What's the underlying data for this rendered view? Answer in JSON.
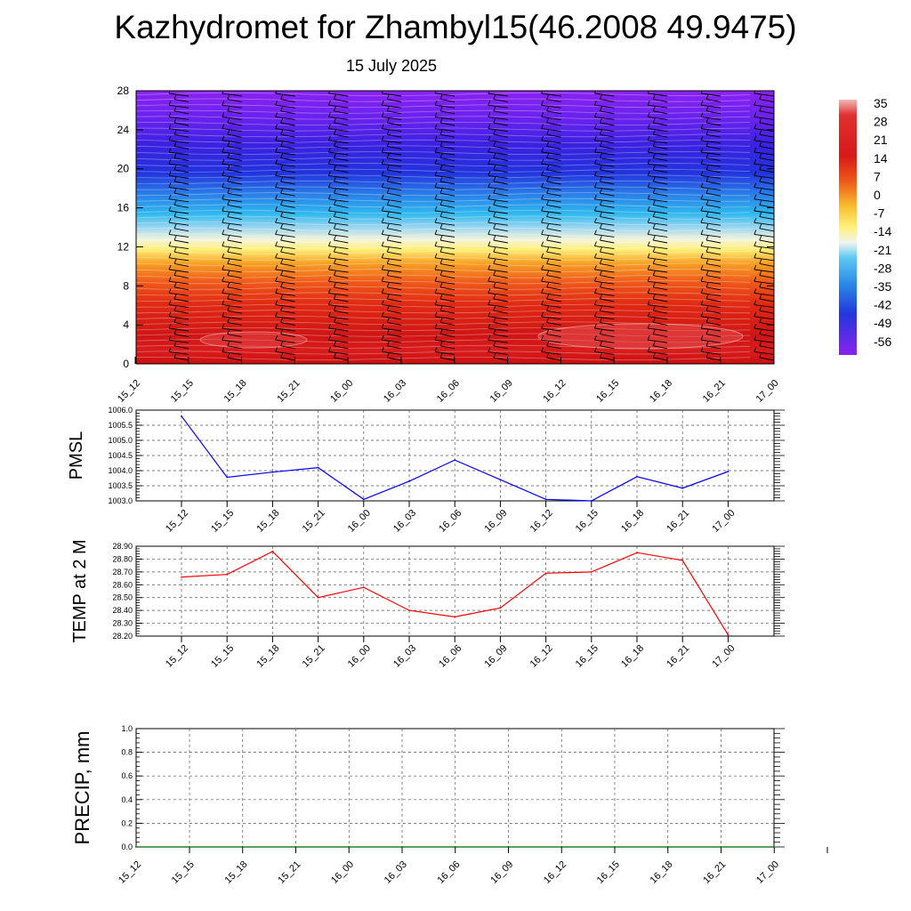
{
  "title": "Kazhydromet for Zhambyl15(46.2008 49.9475)",
  "subtitle": "15 July 2025",
  "chart_data": [
    {
      "type": "heatmap",
      "name": "vertical-profile",
      "x_labels": [
        "15_12",
        "15_15",
        "15_18",
        "15_21",
        "16_00",
        "16_03",
        "16_06",
        "16_09",
        "16_12",
        "16_15",
        "16_18",
        "16_21",
        "17_00"
      ],
      "y_ticks": [
        "0",
        "4",
        "8",
        "12",
        "16",
        "20",
        "24",
        "28"
      ],
      "ylim": [
        0,
        28
      ],
      "colorbar_labels": [
        "35",
        "28",
        "21",
        "14",
        "7",
        "0",
        "-7",
        "-14",
        "-21",
        "-28",
        "-35",
        "-42",
        "-49",
        "-56"
      ],
      "color_range": [
        -60,
        35
      ],
      "colors": {
        "hot": "#d11818",
        "warm": "#f5a623",
        "mid": "#fff07a",
        "cool": "#2fb8ee",
        "cold": "#2233dd",
        "coldest": "#7f22f0"
      },
      "wind_barbs": true
    },
    {
      "type": "line",
      "name": "pmsl",
      "ylabel": "PMSL",
      "x_labels": [
        "15_12",
        "15_15",
        "15_18",
        "15_21",
        "16_00",
        "16_03",
        "16_06",
        "16_09",
        "16_12",
        "16_15",
        "16_18",
        "16_21",
        "17_00"
      ],
      "y_ticks": [
        "1003.0",
        "1003.5",
        "1004.0",
        "1004.5",
        "1005.0",
        "1005.5",
        "1006.0"
      ],
      "ylim": [
        1003.0,
        1006.0
      ],
      "values": [
        1005.8,
        1003.78,
        1003.95,
        1004.1,
        1003.05,
        1003.65,
        1004.35,
        1003.7,
        1003.05,
        1003.0,
        1003.8,
        1003.42,
        1003.97
      ],
      "color": "#0000ff",
      "grid": true
    },
    {
      "type": "line",
      "name": "temp",
      "ylabel": "TEMP at 2 M",
      "x_labels": [
        "15_12",
        "15_15",
        "15_18",
        "15_21",
        "16_00",
        "16_03",
        "16_06",
        "16_09",
        "16_12",
        "16_15",
        "16_18",
        "16_21",
        "17_00"
      ],
      "y_ticks": [
        "28.20",
        "28.30",
        "28.40",
        "28.50",
        "28.60",
        "28.70",
        "28.80",
        "28.90"
      ],
      "ylim": [
        28.2,
        28.9
      ],
      "values": [
        28.66,
        28.68,
        28.86,
        28.5,
        28.58,
        28.4,
        28.35,
        28.42,
        28.69,
        28.7,
        28.85,
        28.79,
        28.21
      ],
      "color": "#ff0000",
      "grid": true
    },
    {
      "type": "line",
      "name": "precip",
      "ylabel": "PRECIP, mm",
      "x_labels": [
        "15_12",
        "15_15",
        "15_18",
        "15_21",
        "16_00",
        "16_03",
        "16_06",
        "16_09",
        "16_12",
        "16_15",
        "16_18",
        "16_21",
        "17_00"
      ],
      "y_ticks": [
        "0.0",
        "0.2",
        "0.4",
        "0.6",
        "0.8",
        "1.0"
      ],
      "ylim": [
        0.0,
        1.0
      ],
      "values": [
        0,
        0,
        0,
        0,
        0,
        0,
        0,
        0,
        0,
        0,
        0,
        0,
        0
      ],
      "color": "#006400",
      "grid": true
    }
  ]
}
